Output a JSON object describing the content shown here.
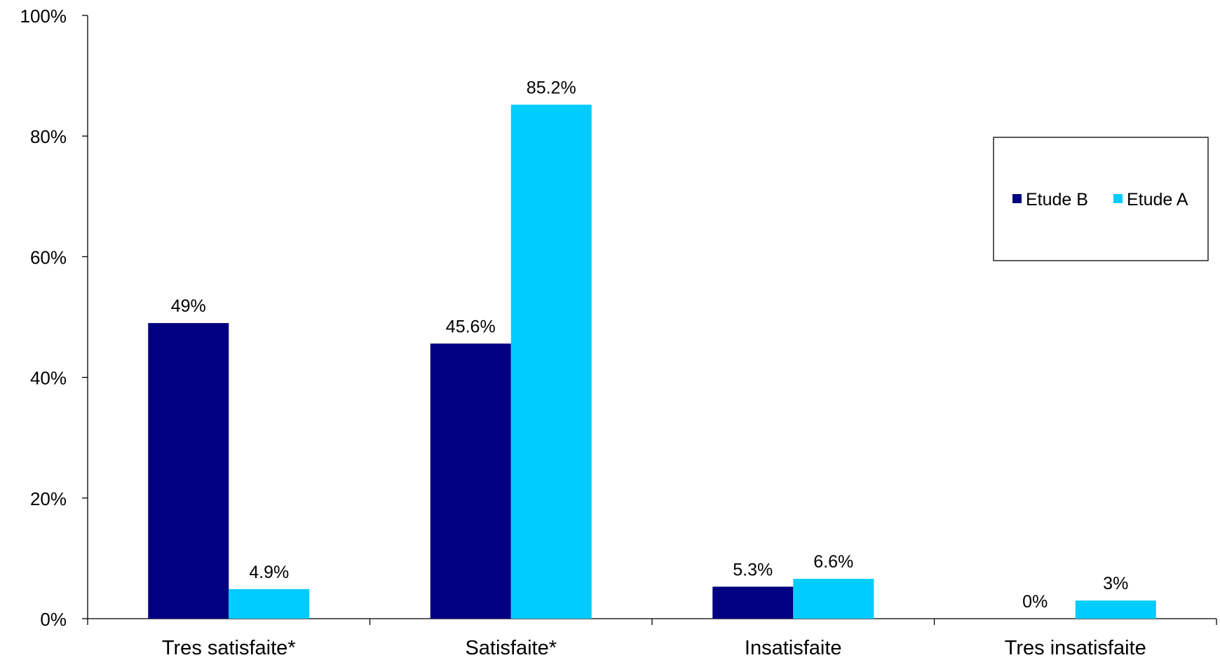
{
  "chart_data": {
    "type": "bar",
    "categories": [
      "Tres satisfaite*",
      "Satisfaite*",
      "Insatisfaite",
      "Tres insatisfaite"
    ],
    "series": [
      {
        "name": "Etude B",
        "color": "#000080",
        "values": [
          49,
          45.6,
          5.3,
          0
        ],
        "labels": [
          "49%",
          "45.6%",
          "5.3%",
          "0%"
        ]
      },
      {
        "name": "Etude A",
        "color": "#00CCFF",
        "values": [
          4.9,
          85.2,
          6.6,
          3
        ],
        "labels": [
          "4.9%",
          "85.2%",
          "6.6%",
          "3%"
        ]
      }
    ],
    "ylim": [
      0,
      100
    ],
    "yticks": [
      0,
      20,
      40,
      60,
      80,
      100
    ],
    "ytick_labels": [
      "0%",
      "20%",
      "40%",
      "60%",
      "80%",
      "100%"
    ],
    "title": "",
    "xlabel": "",
    "ylabel": "",
    "grid": false,
    "legend": {
      "placement": "top-right",
      "entries": [
        "Etude B",
        "Etude A"
      ]
    }
  }
}
